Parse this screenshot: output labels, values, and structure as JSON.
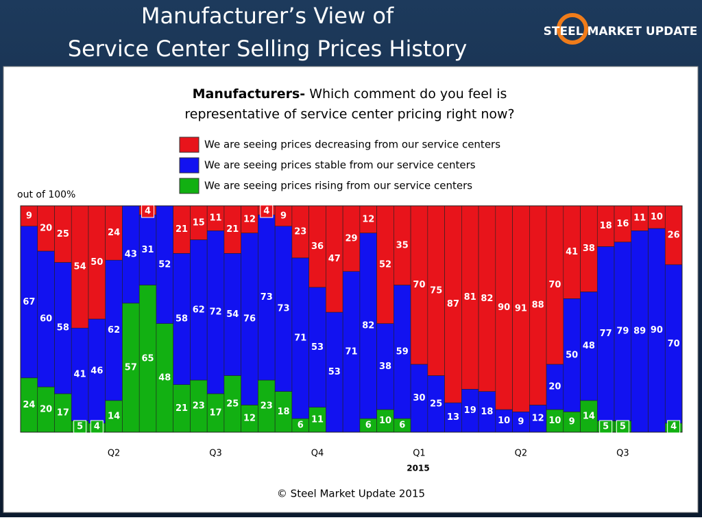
{
  "header": {
    "title_lines": [
      "Manufacturer’s View of",
      "Service Center Selling Prices History"
    ],
    "logo": "STEEL MARKET UPDATE"
  },
  "chart_data": {
    "type": "stacked-bar",
    "question_bold": "Manufacturers-",
    "question_lines": [
      "Which comment do you feel is",
      "representative of service center pricing right now?"
    ],
    "y_label": "out of 100%",
    "year_label": "2015",
    "categories": [
      null,
      null,
      null,
      null,
      null,
      "Q2",
      null,
      null,
      null,
      null,
      null,
      "Q3",
      null,
      null,
      null,
      null,
      null,
      "Q4",
      null,
      null,
      null,
      null,
      null,
      "Q1",
      null,
      null,
      null,
      null,
      null,
      "Q2",
      null,
      null,
      null,
      null,
      null,
      "Q3",
      null,
      null,
      null
    ],
    "ylim": [
      0,
      100
    ],
    "series": [
      {
        "name": "We are seeing prices decreasing from our service centers",
        "color": "#e8141b",
        "values": [
          9,
          20,
          25,
          54,
          50,
          24,
          0,
          4,
          0,
          21,
          15,
          11,
          21,
          12,
          4,
          9,
          23,
          36,
          47,
          29,
          12,
          52,
          35,
          70,
          75,
          87,
          81,
          82,
          90,
          91,
          88,
          70,
          41,
          38,
          18,
          16,
          11,
          10,
          26
        ]
      },
      {
        "name": "We are seeing prices stable from our service centers",
        "color": "#1212f0",
        "values": [
          67,
          60,
          58,
          41,
          46,
          62,
          43,
          31,
          52,
          58,
          62,
          72,
          54,
          76,
          73,
          73,
          71,
          53,
          53,
          71,
          82,
          38,
          59,
          30,
          25,
          13,
          19,
          18,
          10,
          9,
          12,
          20,
          50,
          48,
          77,
          79,
          89,
          90,
          70
        ]
      },
      {
        "name": "We are seeing prices rising from our service centers",
        "color": "#12b012",
        "values": [
          24,
          20,
          17,
          5,
          4,
          14,
          57,
          65,
          48,
          21,
          23,
          17,
          25,
          12,
          23,
          18,
          6,
          11,
          0,
          0,
          6,
          10,
          6,
          0,
          0,
          0,
          0,
          0,
          0,
          0,
          0,
          10,
          9,
          14,
          5,
          5,
          0,
          0,
          4
        ]
      }
    ]
  },
  "footer": "© Steel Market Update 2015"
}
